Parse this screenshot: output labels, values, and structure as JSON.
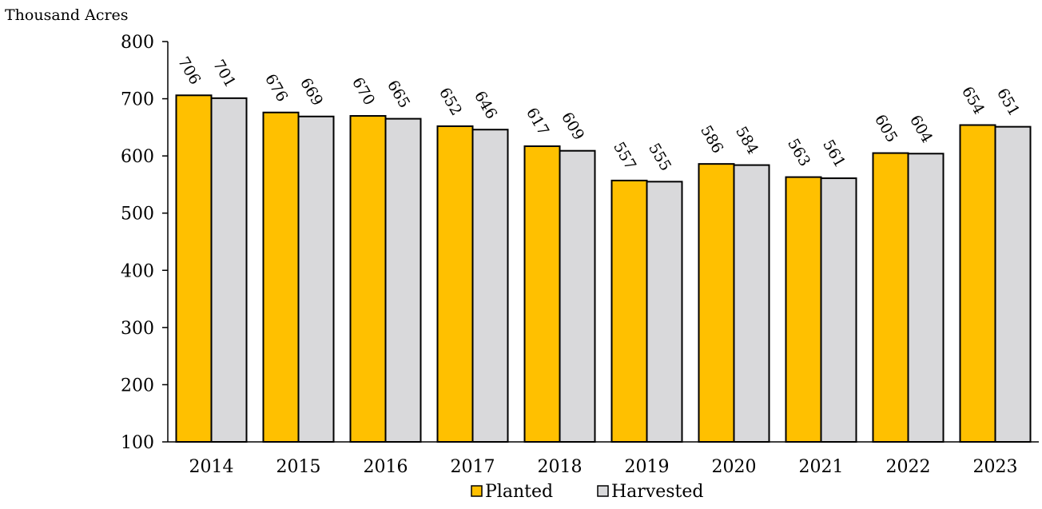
{
  "chart_data": {
    "type": "bar",
    "ylabel": "Thousand Acres",
    "ylim": [
      100,
      800
    ],
    "yticks": [
      100,
      200,
      300,
      400,
      500,
      600,
      700,
      800
    ],
    "categories": [
      "2014",
      "2015",
      "2016",
      "2017",
      "2018",
      "2019",
      "2020",
      "2021",
      "2022",
      "2023"
    ],
    "series": [
      {
        "name": "Planted",
        "color": "#FFC000",
        "values": [
          706,
          676,
          670,
          652,
          617,
          557,
          586,
          563,
          605,
          654
        ]
      },
      {
        "name": "Harvested",
        "color": "#D9D9DB",
        "values": [
          701,
          669,
          665,
          646,
          609,
          555,
          584,
          561,
          604,
          651
        ]
      }
    ],
    "grid": false,
    "legend": "bottom-center",
    "data_labels": true
  }
}
